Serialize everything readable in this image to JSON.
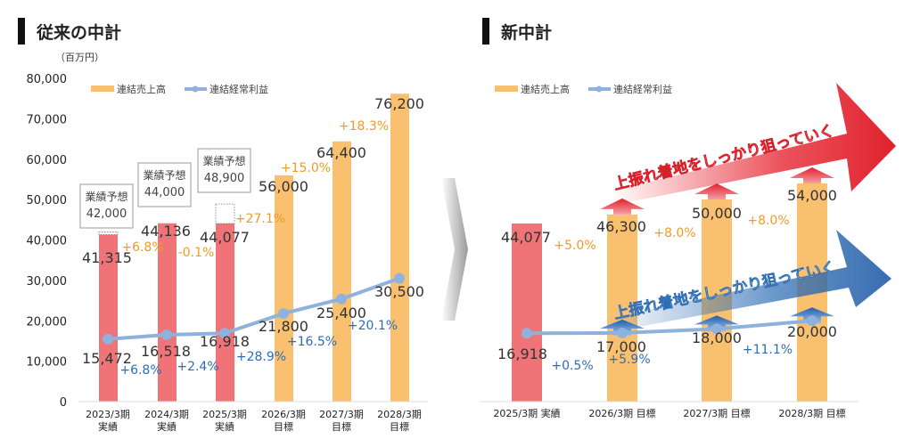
{
  "left_title": "従来の中計",
  "right_title": "新中計",
  "colors": {
    "sales": "#F8C06F",
    "actual": "#F07378",
    "profit": "#8FB2DC",
    "sales_growth": "#F39A22",
    "profit_growth": "#2E6DB4"
  },
  "chart_data": [
    {
      "type": "bar",
      "title": "従来の中計",
      "unit_label": "（百万円）",
      "ylim": [
        0,
        80000
      ],
      "yticks": [
        "0",
        "10,000",
        "20,000",
        "30,000",
        "40,000",
        "50,000",
        "60,000",
        "70,000",
        "80,000"
      ],
      "legend": [
        "連結売上高",
        "連結経常利益"
      ],
      "legend_placement": "top-left",
      "categories": [
        [
          "2023/3期",
          "実績"
        ],
        [
          "2024/3期",
          "実績"
        ],
        [
          "2025/3期",
          "実績"
        ],
        [
          "2026/3期",
          "目標"
        ],
        [
          "2027/3期",
          "目標"
        ],
        [
          "2028/3期",
          "目標"
        ]
      ],
      "series": [
        {
          "name": "連結売上高",
          "type": "bar",
          "values": [
            41315,
            44136,
            44077,
            56000,
            64400,
            76200
          ],
          "labels": [
            "41,315",
            "44,136",
            "44,077",
            "56,000",
            "64,400",
            "76,200"
          ],
          "actual": [
            true,
            true,
            true,
            false,
            false,
            false
          ],
          "growth": [
            "+6.8%",
            "-0.1%",
            "+27.1%",
            "+15.0%",
            "+18.3%"
          ]
        },
        {
          "name": "連結経常利益",
          "type": "line",
          "values": [
            15472,
            16518,
            16918,
            21800,
            25400,
            30500
          ],
          "labels": [
            "15,472",
            "16,518",
            "16,918",
            "21,800",
            "25,400",
            "30,500"
          ],
          "growth": [
            "+6.8%",
            "+2.4%",
            "+28.9%",
            "+16.5%",
            "+20.1%"
          ]
        }
      ],
      "forecasts": [
        {
          "label": "業績予想",
          "value": 42000,
          "text": "42,000"
        },
        {
          "label": "業績予想",
          "value": 44000,
          "text": "44,000"
        },
        {
          "label": "業績予想",
          "value": 48900,
          "text": "48,900"
        }
      ]
    },
    {
      "type": "bar",
      "title": "新中計",
      "ylim": [
        0,
        80000
      ],
      "legend": [
        "連結売上高",
        "連結経常利益"
      ],
      "legend_placement": "top-left",
      "categories": [
        "2025/3期 実績",
        "2026/3期 目標",
        "2027/3期 目標",
        "2028/3期 目標"
      ],
      "series": [
        {
          "name": "連結売上高",
          "type": "bar",
          "values": [
            44077,
            46300,
            50000,
            54000
          ],
          "labels": [
            "44,077",
            "46,300",
            "50,000",
            "54,000"
          ],
          "actual": [
            true,
            false,
            false,
            false
          ],
          "growth": [
            "+5.0%",
            "+8.0%",
            "+8.0%"
          ]
        },
        {
          "name": "連結経常利益",
          "type": "line",
          "values": [
            16918,
            17000,
            18000,
            20000
          ],
          "labels": [
            "16,918",
            "17,000",
            "18,000",
            "20,000"
          ],
          "growth": [
            "+0.5%",
            "+5.9%",
            "+11.1%"
          ]
        }
      ],
      "annotations": [
        "上振れ着地をしっかり狙っていく",
        "上振れ着地をしっかり狙っていく"
      ]
    }
  ]
}
